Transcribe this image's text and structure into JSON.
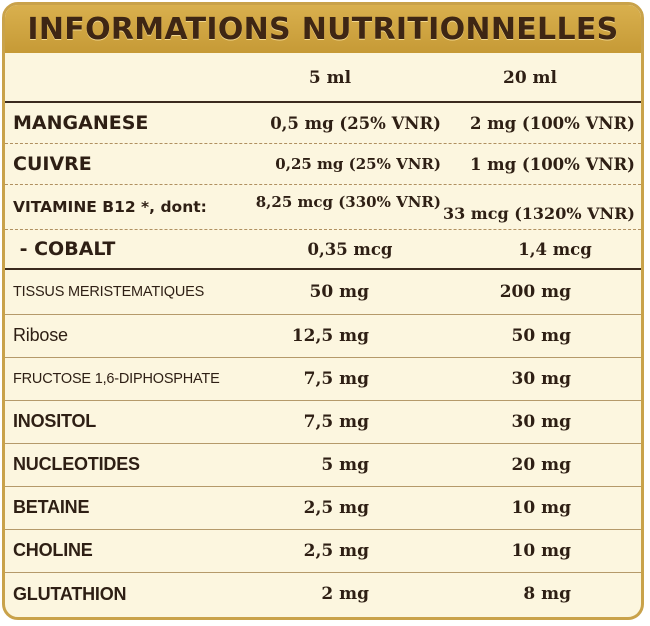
{
  "title": "INFORMATIONS NUTRITIONNELLES",
  "columns": {
    "c1": "5 ml",
    "c2": "20 ml"
  },
  "rows": [
    {
      "label": "MANGANESE",
      "v5": "0,5 mg (25% VNR)",
      "v20": "2 mg (100% VNR)"
    },
    {
      "label": "CUIVRE",
      "v5": "0,25 mg (25% VNR)",
      "v20": "1 mg (100% VNR)"
    },
    {
      "label": "VITAMINE B12 *, dont:",
      "v5": "8,25 mcg (330% VNR)",
      "v20": "33 mcg (1320% VNR)"
    },
    {
      "label": " - COBALT",
      "v5": "0,35 mcg",
      "v20": "1,4 mcg"
    },
    {
      "label": "TISSUS MERISTEMATIQUES",
      "v5": "50 mg",
      "v20": "200 mg"
    },
    {
      "label": "Ribose",
      "v5": "12,5 mg",
      "v20": "50 mg"
    },
    {
      "label": "FRUCTOSE 1,6-DIPHOSPHATE",
      "v5": "7,5 mg",
      "v20": "30 mg"
    },
    {
      "label": "INOSITOL",
      "v5": "7,5 mg",
      "v20": "30 mg"
    },
    {
      "label": "NUCLEOTIDES",
      "v5": "5 mg",
      "v20": "20 mg"
    },
    {
      "label": "BETAINE",
      "v5": "2,5 mg",
      "v20": "10 mg"
    },
    {
      "label": "CHOLINE",
      "v5": "2,5 mg",
      "v20": "10 mg"
    },
    {
      "label": "GLUTATHION",
      "v5": "2 mg",
      "v20": "8 mg"
    }
  ]
}
